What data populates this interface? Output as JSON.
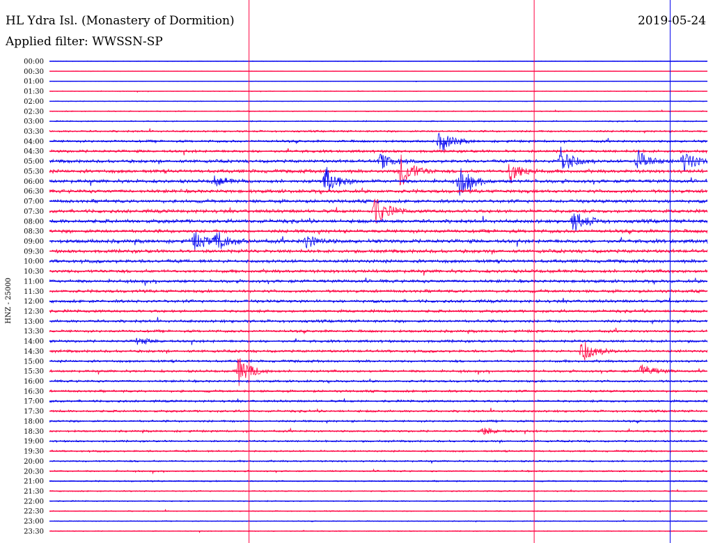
{
  "header": {
    "station": "HL Ydra Isl. (Monastery of Dormition)",
    "filter": "Applied filter: WWSSN-SP",
    "date": "2019-05-24"
  },
  "chart_data": {
    "type": "line",
    "title": "HL Ydra Isl. (Monastery of Dormition)",
    "subtitle": "Applied filter: WWSSN-SP",
    "date": "2019-05-24",
    "ylabel": "HNZ - 25000",
    "trace_labels": [
      "00:00",
      "00:30",
      "01:00",
      "01:30",
      "02:00",
      "02:30",
      "03:00",
      "03:30",
      "04:00",
      "04:30",
      "05:00",
      "05:30",
      "06:00",
      "06:30",
      "07:00",
      "07:30",
      "08:00",
      "08:30",
      "09:00",
      "09:30",
      "10:00",
      "10:30",
      "11:00",
      "11:30",
      "12:00",
      "12:30",
      "13:00",
      "13:30",
      "14:00",
      "14:30",
      "15:00",
      "15:30",
      "16:00",
      "16:30",
      "17:00",
      "17:30",
      "18:00",
      "18:30",
      "19:00",
      "19:30",
      "20:00",
      "20:30",
      "21:00",
      "21:30",
      "22:00",
      "22:30",
      "23:00",
      "23:30"
    ],
    "colors": {
      "even_trace": "#0000ee",
      "odd_trace": "#ff0040",
      "marker_red": "#ff0040",
      "marker_blue": "#0000ee"
    },
    "minute_markers": [
      {
        "minute": 9.1,
        "color": "red"
      },
      {
        "minute": 22.1,
        "color": "red"
      },
      {
        "minute": 28.3,
        "color": "blue"
      }
    ],
    "noise_profile": [
      0.3,
      0.3,
      0.3,
      0.4,
      0.4,
      0.6,
      0.7,
      1.1,
      1.4,
      1.6,
      1.8,
      2.0,
      2.0,
      2.0,
      1.9,
      2.0,
      2.1,
      2.0,
      2.2,
      2.0,
      1.9,
      1.9,
      1.8,
      1.7,
      1.7,
      1.6,
      1.6,
      1.5,
      1.5,
      1.5,
      1.4,
      1.4,
      1.3,
      1.3,
      1.3,
      1.3,
      1.2,
      1.2,
      1.1,
      1.0,
      1.0,
      0.9,
      0.8,
      0.7,
      0.7,
      0.6,
      0.5,
      0.5
    ],
    "events": [
      {
        "trace": 10,
        "minute": 15.1,
        "amp": 11
      },
      {
        "trace": 12,
        "minute": 7.5,
        "amp": 7
      },
      {
        "trace": 12,
        "minute": 12.6,
        "amp": 20
      },
      {
        "trace": 12,
        "minute": 18.7,
        "amp": 20
      },
      {
        "trace": 15,
        "minute": 14.8,
        "amp": 22
      },
      {
        "trace": 11,
        "minute": 16.0,
        "amp": 25
      },
      {
        "trace": 8,
        "minute": 17.8,
        "amp": 16
      },
      {
        "trace": 11,
        "minute": 21.0,
        "amp": 17
      },
      {
        "trace": 10,
        "minute": 23.3,
        "amp": 22
      },
      {
        "trace": 16,
        "minute": 23.9,
        "amp": 16
      },
      {
        "trace": 10,
        "minute": 26.8,
        "amp": 16
      },
      {
        "trace": 10,
        "minute": 28.9,
        "amp": 16
      },
      {
        "trace": 18,
        "minute": 6.6,
        "amp": 12
      },
      {
        "trace": 18,
        "minute": 7.6,
        "amp": 14
      },
      {
        "trace": 18,
        "minute": 11.7,
        "amp": 9
      },
      {
        "trace": 31,
        "minute": 8.6,
        "amp": 22
      },
      {
        "trace": 29,
        "minute": 24.3,
        "amp": 18
      },
      {
        "trace": 31,
        "minute": 27.0,
        "amp": 10
      },
      {
        "trace": 28,
        "minute": 4.0,
        "amp": 5
      },
      {
        "trace": 37,
        "minute": 19.8,
        "amp": 6
      }
    ]
  }
}
